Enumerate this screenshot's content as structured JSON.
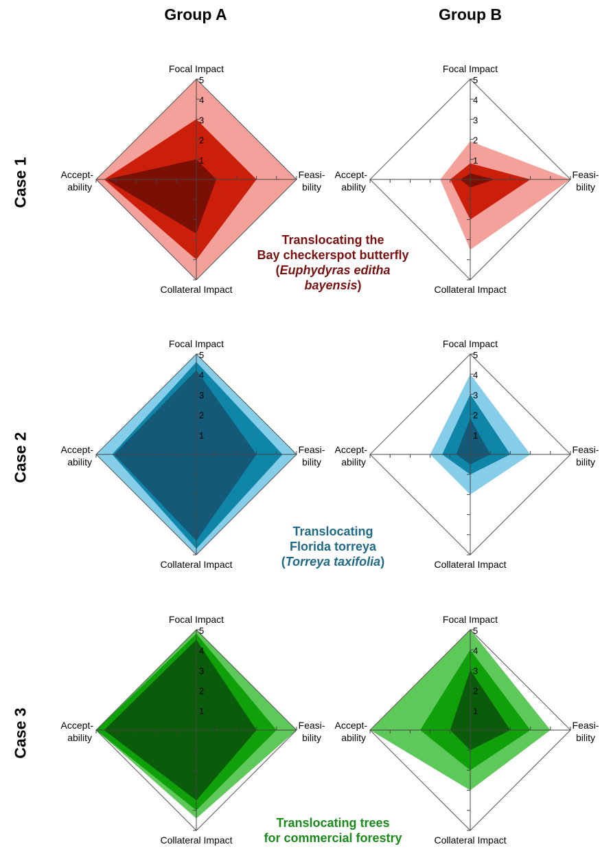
{
  "headers": {
    "group_a": "Group A",
    "group_b": "Group B",
    "case_1": "Case 1",
    "case_2": "Case 2",
    "case_3": "Case 3"
  },
  "titles": {
    "case_1": {
      "line1": "Translocating the",
      "line2": "Bay checkerspot butterfly",
      "line3_open": "(",
      "line3_italic": "Euphydyras editha",
      "line4_italic": "bayensis",
      "line4_close": ")",
      "color": "#7a1010"
    },
    "case_2": {
      "line1": "Translocating",
      "line2": "Florida torreya",
      "line3_open": "(",
      "line3_italic": "Torreya taxifolia",
      "line3_close": ")",
      "color": "#1e6a86"
    },
    "case_3": {
      "line1": "Translocating trees",
      "line2": "for commercial forestry",
      "color": "#1a8a1a"
    }
  },
  "chart_data": [
    {
      "type": "radar",
      "case": "Case 1",
      "group": "Group A",
      "axes": [
        "Focal Impact",
        "Feasibility",
        "Collateral Impact",
        "Acceptability"
      ],
      "axis_labels": {
        "focal": "Focal Impact",
        "feasibility": [
          "Feasi-",
          "bility"
        ],
        "collateral": "Collateral Impact",
        "acceptability": [
          "Accept-",
          "ability"
        ]
      },
      "tick_labels": [
        "1",
        "2",
        "3",
        "4",
        "5"
      ],
      "range": [
        0,
        5
      ],
      "colors": [
        "#f4a09b",
        "#cc1f0a",
        "#7a0f05"
      ],
      "series": [
        {
          "values": [
            5,
            5,
            5,
            5
          ]
        },
        {
          "values": [
            3,
            3,
            4,
            4.6
          ]
        },
        {
          "values": [
            1,
            1,
            2.7,
            4.5
          ]
        }
      ]
    },
    {
      "type": "radar",
      "case": "Case 1",
      "group": "Group B",
      "axes": [
        "Focal Impact",
        "Feasibility",
        "Collateral Impact",
        "Acceptability"
      ],
      "axis_labels": {
        "focal": "Focal Impact",
        "feasibility": [
          "Feasi-",
          "bility"
        ],
        "collateral": "Collateral Impact",
        "acceptability": [
          "Accept-",
          "ability"
        ]
      },
      "tick_labels": [
        "1",
        "2",
        "3",
        "4",
        "5"
      ],
      "range": [
        0,
        5
      ],
      "colors": [
        "#f4a09b",
        "#cc1f0a",
        "#7a0f05"
      ],
      "series": [
        {
          "values": [
            1.9,
            5,
            3.5,
            1.5
          ]
        },
        {
          "values": [
            0.8,
            3,
            2,
            1
          ]
        },
        {
          "values": [
            0.3,
            1.2,
            0.4,
            0.5
          ]
        }
      ]
    },
    {
      "type": "radar",
      "case": "Case 2",
      "group": "Group A",
      "axes": [
        "Focal Impact",
        "Feasibility",
        "Collateral Impact",
        "Acceptability"
      ],
      "axis_labels": {
        "focal": "Focal Impact",
        "feasibility": [
          "Feasi-",
          "bility"
        ],
        "collateral": "Collateral Impact",
        "acceptability": [
          "Accept-",
          "ability"
        ]
      },
      "tick_labels": [
        "1",
        "2",
        "3",
        "4",
        "5"
      ],
      "range": [
        0,
        5
      ],
      "colors": [
        "#86cde9",
        "#0f86a8",
        "#145a78"
      ],
      "series": [
        {
          "values": [
            5,
            5,
            5,
            5
          ]
        },
        {
          "values": [
            4.6,
            4.3,
            4.7,
            4.2
          ]
        },
        {
          "values": [
            4.2,
            3,
            4.3,
            4.1
          ]
        }
      ]
    },
    {
      "type": "radar",
      "case": "Case 2",
      "group": "Group B",
      "axes": [
        "Focal Impact",
        "Feasibility",
        "Collateral Impact",
        "Acceptability"
      ],
      "axis_labels": {
        "focal": "Focal Impact",
        "feasibility": [
          "Feasi-",
          "bility"
        ],
        "collateral": "Collateral Impact",
        "acceptability": [
          "Accept-",
          "ability"
        ]
      },
      "tick_labels": [
        "1",
        "2",
        "3",
        "4",
        "5"
      ],
      "range": [
        0,
        5
      ],
      "colors": [
        "#86cde9",
        "#0f86a8",
        "#145a78"
      ],
      "series": [
        {
          "values": [
            4,
            3,
            2,
            2
          ]
        },
        {
          "values": [
            3,
            2,
            1,
            1.4
          ]
        },
        {
          "values": [
            1.8,
            1,
            0.5,
            0.7
          ]
        }
      ]
    },
    {
      "type": "radar",
      "case": "Case 3",
      "group": "Group A",
      "axes": [
        "Focal Impact",
        "Feasibility",
        "Collateral Impact",
        "Acceptability"
      ],
      "axis_labels": {
        "focal": "Focal Impact",
        "feasibility": [
          "Feasi-",
          "bility"
        ],
        "collateral": "Collateral Impact",
        "acceptability": [
          "Accept-",
          "ability"
        ]
      },
      "tick_labels": [
        "1",
        "2",
        "3",
        "4",
        "5"
      ],
      "range": [
        0,
        5
      ],
      "colors": [
        "#5fc85a",
        "#0fa00a",
        "#0a5c0a"
      ],
      "series": [
        {
          "values": [
            5,
            5,
            4.4,
            5
          ]
        },
        {
          "values": [
            4.8,
            4,
            4,
            5
          ]
        },
        {
          "values": [
            4.5,
            3,
            3.5,
            4.6
          ]
        }
      ]
    },
    {
      "type": "radar",
      "case": "Case 3",
      "group": "Group B",
      "axes": [
        "Focal Impact",
        "Feasibility",
        "Collateral Impact",
        "Acceptability"
      ],
      "axis_labels": {
        "focal": "Focal Impact",
        "feasibility": [
          "Feasi-",
          "bility"
        ],
        "collateral": "Collateral Impact",
        "acceptability": [
          "Accept-",
          "ability"
        ]
      },
      "tick_labels": [
        "1",
        "2",
        "3",
        "4",
        "5"
      ],
      "range": [
        0,
        5
      ],
      "colors": [
        "#5fc85a",
        "#0fa00a",
        "#0a5c0a"
      ],
      "series": [
        {
          "values": [
            5,
            4,
            3,
            5
          ]
        },
        {
          "values": [
            4,
            3,
            2,
            2.5
          ]
        },
        {
          "values": [
            3,
            2,
            1,
            1
          ]
        }
      ]
    }
  ]
}
